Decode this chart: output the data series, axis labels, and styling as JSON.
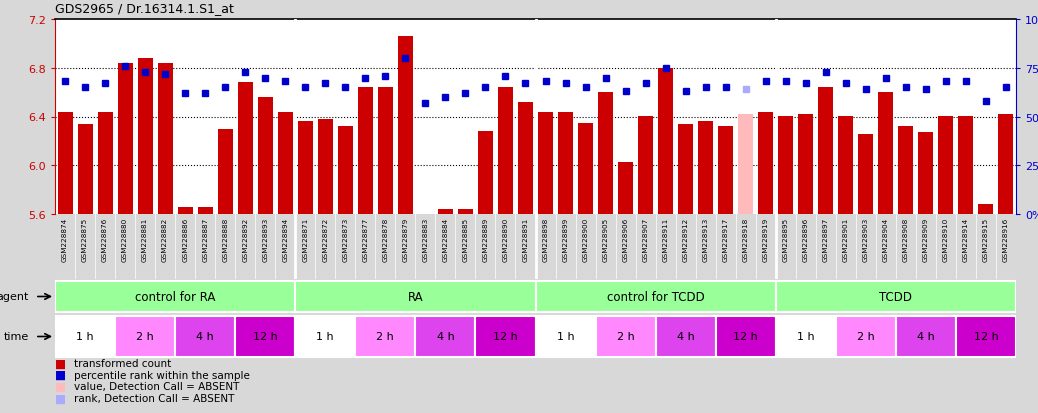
{
  "title": "GDS2965 / Dr.16314.1.S1_at",
  "ylim": [
    5.6,
    7.2
  ],
  "ylim_right": [
    0,
    100
  ],
  "yticks_left": [
    5.6,
    6.0,
    6.4,
    6.8,
    7.2
  ],
  "yticks_right": [
    0,
    25,
    50,
    75,
    100
  ],
  "samples": [
    "GSM228874",
    "GSM228875",
    "GSM228876",
    "GSM228880",
    "GSM228881",
    "GSM228882",
    "GSM228886",
    "GSM228887",
    "GSM228888",
    "GSM228892",
    "GSM228893",
    "GSM228894",
    "GSM228871",
    "GSM228872",
    "GSM228873",
    "GSM228877",
    "GSM228878",
    "GSM228879",
    "GSM228883",
    "GSM228884",
    "GSM228885",
    "GSM228889",
    "GSM228890",
    "GSM228891",
    "GSM228898",
    "GSM228899",
    "GSM228900",
    "GSM228905",
    "GSM228906",
    "GSM228907",
    "GSM228911",
    "GSM228912",
    "GSM228913",
    "GSM228917",
    "GSM228918",
    "GSM228919",
    "GSM228895",
    "GSM228896",
    "GSM228897",
    "GSM228901",
    "GSM228903",
    "GSM228904",
    "GSM228908",
    "GSM228909",
    "GSM228910",
    "GSM228914",
    "GSM228915",
    "GSM228916"
  ],
  "bar_values": [
    6.44,
    6.34,
    6.44,
    6.84,
    6.88,
    6.84,
    5.66,
    5.66,
    6.3,
    6.68,
    6.56,
    6.44,
    6.36,
    6.38,
    6.32,
    6.64,
    6.64,
    7.06,
    5.6,
    5.64,
    5.64,
    6.28,
    6.64,
    6.52,
    6.44,
    6.44,
    6.35,
    6.6,
    6.03,
    6.4,
    6.8,
    6.34,
    6.36,
    6.32,
    6.42,
    6.44,
    6.4,
    6.42,
    6.64,
    6.4,
    6.26,
    6.6,
    6.32,
    6.27,
    6.4,
    6.4,
    5.68,
    6.42
  ],
  "bar_colors": [
    "#cc0000",
    "#cc0000",
    "#cc0000",
    "#cc0000",
    "#cc0000",
    "#cc0000",
    "#cc0000",
    "#cc0000",
    "#cc0000",
    "#cc0000",
    "#cc0000",
    "#cc0000",
    "#cc0000",
    "#cc0000",
    "#cc0000",
    "#cc0000",
    "#cc0000",
    "#cc0000",
    "#cc0000",
    "#cc0000",
    "#cc0000",
    "#cc0000",
    "#cc0000",
    "#cc0000",
    "#cc0000",
    "#cc0000",
    "#cc0000",
    "#cc0000",
    "#cc0000",
    "#cc0000",
    "#cc0000",
    "#cc0000",
    "#cc0000",
    "#cc0000",
    "#ffbbbb",
    "#cc0000",
    "#cc0000",
    "#cc0000",
    "#cc0000",
    "#cc0000",
    "#cc0000",
    "#cc0000",
    "#cc0000",
    "#cc0000",
    "#cc0000",
    "#cc0000",
    "#cc0000",
    "#cc0000"
  ],
  "rank_values": [
    68,
    65,
    67,
    76,
    73,
    72,
    62,
    62,
    65,
    73,
    70,
    68,
    65,
    67,
    65,
    70,
    71,
    80,
    57,
    60,
    62,
    65,
    71,
    67,
    68,
    67,
    65,
    70,
    63,
    67,
    75,
    63,
    65,
    65,
    64,
    68,
    68,
    67,
    73,
    67,
    64,
    70,
    65,
    64,
    68,
    68,
    58,
    65
  ],
  "rank_absent": [
    false,
    false,
    false,
    false,
    false,
    false,
    false,
    false,
    false,
    false,
    false,
    false,
    false,
    false,
    false,
    false,
    false,
    false,
    false,
    false,
    false,
    false,
    false,
    false,
    false,
    false,
    false,
    false,
    false,
    false,
    false,
    false,
    false,
    false,
    true,
    false,
    false,
    false,
    false,
    false,
    false,
    false,
    false,
    false,
    false,
    false,
    false,
    false
  ],
  "groups": [
    {
      "label": "control for RA",
      "start": 0,
      "end": 12,
      "color": "#99ff99"
    },
    {
      "label": "RA",
      "start": 12,
      "end": 24,
      "color": "#99ff99"
    },
    {
      "label": "control for TCDD",
      "start": 24,
      "end": 36,
      "color": "#99ff99"
    },
    {
      "label": "TCDD",
      "start": 36,
      "end": 48,
      "color": "#99ff99"
    }
  ],
  "time_groups": [
    {
      "label": "1 h",
      "start": 0,
      "end": 3,
      "color": "#ffffff"
    },
    {
      "label": "2 h",
      "start": 3,
      "end": 6,
      "color": "#ff88ff"
    },
    {
      "label": "4 h",
      "start": 6,
      "end": 9,
      "color": "#dd44ee"
    },
    {
      "label": "12 h",
      "start": 9,
      "end": 12,
      "color": "#cc00cc"
    },
    {
      "label": "1 h",
      "start": 12,
      "end": 15,
      "color": "#ffffff"
    },
    {
      "label": "2 h",
      "start": 15,
      "end": 18,
      "color": "#ff88ff"
    },
    {
      "label": "4 h",
      "start": 18,
      "end": 21,
      "color": "#dd44ee"
    },
    {
      "label": "12 h",
      "start": 21,
      "end": 24,
      "color": "#cc00cc"
    },
    {
      "label": "1 h",
      "start": 24,
      "end": 27,
      "color": "#ffffff"
    },
    {
      "label": "2 h",
      "start": 27,
      "end": 30,
      "color": "#ff88ff"
    },
    {
      "label": "4 h",
      "start": 30,
      "end": 33,
      "color": "#dd44ee"
    },
    {
      "label": "12 h",
      "start": 33,
      "end": 36,
      "color": "#cc00cc"
    },
    {
      "label": "1 h",
      "start": 36,
      "end": 39,
      "color": "#ffffff"
    },
    {
      "label": "2 h",
      "start": 39,
      "end": 42,
      "color": "#ff88ff"
    },
    {
      "label": "4 h",
      "start": 42,
      "end": 45,
      "color": "#dd44ee"
    },
    {
      "label": "12 h",
      "start": 45,
      "end": 48,
      "color": "#cc00cc"
    }
  ],
  "background_color": "#d8d8d8",
  "plot_bg_color": "#ffffff",
  "xtick_bg": "#cccccc",
  "legend_items": [
    {
      "color": "#cc0000",
      "label": "transformed count"
    },
    {
      "color": "#0000cc",
      "label": "percentile rank within the sample"
    },
    {
      "color": "#ffbbbb",
      "label": "value, Detection Call = ABSENT"
    },
    {
      "color": "#aaaaff",
      "label": "rank, Detection Call = ABSENT"
    }
  ]
}
